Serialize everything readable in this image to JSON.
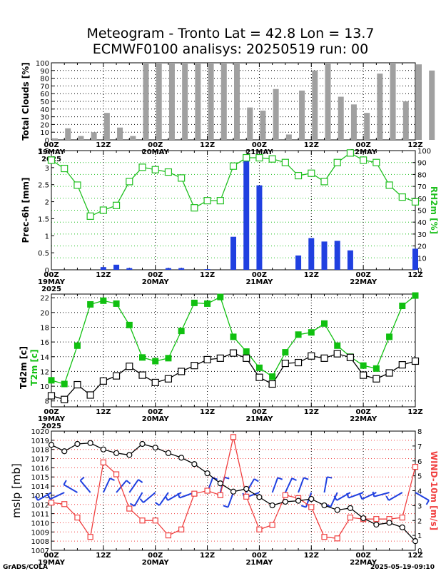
{
  "header": {
    "title_line1": "Meteogram - Tronto Lat = 42.8 Lon = 13.7",
    "title_line2": "ECMWF0100 analisys: 20250519 run: 00"
  },
  "footer": {
    "left": "GrADS/COLA",
    "right": "2025-05-19-09:10"
  },
  "time_axis": {
    "ticks": [
      "00Z",
      "12Z",
      "00Z",
      "12Z",
      "00Z",
      "12Z",
      "00Z",
      "12Z"
    ],
    "day_labels": [
      "19MAY",
      "20MAY",
      "21MAY",
      "22MAY"
    ],
    "year": "2025"
  },
  "colors": {
    "bar_gray": "#a0a0a0",
    "precip_blue": "#2040e0",
    "rh_green": "#20c020",
    "t2m_green": "#10c010",
    "td_black": "#000000",
    "wind_red": "#f04040",
    "barb_blue": "#2040e0"
  },
  "chart_data": [
    {
      "type": "bar",
      "panel": "clouds",
      "ylabel": "Total Clouds [%]",
      "ylim": [
        0,
        100
      ],
      "yticks": [
        0,
        10,
        20,
        30,
        40,
        50,
        60,
        70,
        80,
        90,
        100
      ],
      "x_step_hours": 3,
      "values": [
        2,
        15,
        5,
        10,
        35,
        16,
        5,
        100,
        100,
        100,
        100,
        100,
        100,
        100,
        100,
        42,
        38,
        66,
        7,
        64,
        90,
        100,
        56,
        46,
        35,
        86,
        100,
        50,
        98,
        90
      ]
    },
    {
      "type": "bar+line",
      "panel": "precip_rh",
      "series": [
        {
          "name": "Prec-6h [mm]",
          "axis": "left",
          "ylim": [
            0,
            3.5
          ],
          "yticks": [
            0,
            0.5,
            1,
            1.5,
            2,
            2.5,
            3,
            3.5
          ],
          "x_hours": [
            0,
            3,
            6,
            9,
            12,
            15,
            18,
            21,
            24,
            27,
            30,
            33,
            36,
            39,
            42,
            45,
            48,
            51,
            54,
            57,
            60,
            63,
            66,
            69,
            72,
            75,
            78,
            81,
            84
          ],
          "values": [
            0,
            0,
            0,
            0,
            0.08,
            0.15,
            0.05,
            0,
            0,
            0.05,
            0.05,
            0,
            0.02,
            0,
            0.97,
            3.38,
            2.48,
            0,
            0,
            0.42,
            0.93,
            0.83,
            0.85,
            0.57,
            0,
            0,
            0,
            0,
            0.62
          ]
        },
        {
          "name": "RH2m [%]",
          "axis": "right",
          "ylim": [
            0,
            100
          ],
          "yticks": [
            0,
            10,
            20,
            30,
            40,
            50,
            60,
            70,
            80,
            90,
            100
          ],
          "x_hours": [
            0,
            3,
            6,
            9,
            12,
            15,
            18,
            21,
            24,
            27,
            30,
            33,
            36,
            39,
            42,
            45,
            48,
            51,
            54,
            57,
            60,
            63,
            66,
            69,
            72,
            75,
            78,
            81,
            84
          ],
          "values": [
            92,
            85,
            71,
            45,
            50,
            54,
            74,
            86,
            84,
            82,
            77,
            52,
            58,
            58,
            87,
            94,
            94,
            93,
            90,
            79,
            81,
            74,
            90,
            98,
            92,
            90,
            71,
            61,
            57
          ]
        }
      ]
    },
    {
      "type": "line",
      "panel": "temperature",
      "ylabel_top": "Td2m [c]",
      "ylabel_bottom": "T2m [c]",
      "ylim": [
        7.2,
        22.5
      ],
      "yticks": [
        8,
        10,
        12,
        14,
        16,
        18,
        20,
        22
      ],
      "series": [
        {
          "name": "T2m",
          "x_hours": [
            0,
            3,
            6,
            9,
            12,
            15,
            18,
            21,
            24,
            27,
            30,
            33,
            36,
            39,
            42,
            45,
            48,
            51,
            54,
            57,
            60,
            63,
            66,
            69,
            72,
            75,
            78,
            81,
            84
          ],
          "values": [
            10.8,
            10.3,
            15.5,
            21.1,
            21.6,
            21.2,
            18.3,
            13.9,
            13.4,
            13.8,
            17.5,
            21.3,
            21.2,
            22.1,
            16.7,
            14.7,
            12.5,
            11.3,
            14.6,
            17.0,
            17.3,
            18.5,
            15.5,
            14.0,
            12.8,
            12.4,
            16.7,
            20.9,
            22.3
          ]
        },
        {
          "name": "Td2m",
          "x_hours": [
            0,
            3,
            6,
            9,
            12,
            15,
            18,
            21,
            24,
            27,
            30,
            33,
            36,
            39,
            42,
            45,
            48,
            51,
            54,
            57,
            60,
            63,
            66,
            69,
            72,
            75,
            78,
            81,
            84
          ],
          "values": [
            8.7,
            8.2,
            10.2,
            8.8,
            10.7,
            11.4,
            12.7,
            11.5,
            10.5,
            11.0,
            12.0,
            12.8,
            13.6,
            13.8,
            14.5,
            13.8,
            11.2,
            10.3,
            13.1,
            13.2,
            14.1,
            13.8,
            14.4,
            13.9,
            11.5,
            11.0,
            11.8,
            12.9,
            13.4
          ]
        }
      ]
    },
    {
      "type": "line+barbs",
      "panel": "mslp_wind",
      "series": [
        {
          "name": "mslp [mb]",
          "axis": "left",
          "ylim": [
            1007,
            1020
          ],
          "yticks": [
            1007,
            1008,
            1009,
            1010,
            1011,
            1012,
            1013,
            1014,
            1015,
            1016,
            1017,
            1018,
            1019,
            1020
          ],
          "x_hours": [
            0,
            3,
            6,
            9,
            12,
            15,
            18,
            21,
            24,
            27,
            30,
            33,
            36,
            39,
            42,
            45,
            48,
            51,
            54,
            57,
            60,
            63,
            66,
            69,
            72,
            75,
            78,
            81,
            84
          ],
          "values": [
            1018.5,
            1017.8,
            1018.6,
            1018.7,
            1018.0,
            1017.6,
            1017.4,
            1018.6,
            1018.2,
            1017.6,
            1017.1,
            1016.4,
            1015.4,
            1014.3,
            1013.4,
            1013.7,
            1012.8,
            1011.9,
            1012.3,
            1012.4,
            1012.6,
            1011.9,
            1011.4,
            1011.6,
            1010.5,
            1009.8,
            1010.0,
            1009.5,
            1008.0
          ]
        },
        {
          "name": "WIND-10m [m/s]",
          "axis": "right",
          "ylim": [
            0,
            8
          ],
          "yticks": [
            0,
            1,
            2,
            3,
            4,
            5,
            6,
            7,
            8
          ],
          "x_hours": [
            0,
            3,
            6,
            9,
            12,
            15,
            18,
            21,
            24,
            27,
            30,
            33,
            36,
            39,
            42,
            45,
            48,
            51,
            54,
            57,
            60,
            63,
            66,
            69,
            72,
            75,
            78,
            81,
            84
          ],
          "values": [
            3.2,
            3.1,
            2.2,
            0.9,
            5.9,
            5.1,
            2.8,
            2.0,
            2.0,
            1.0,
            1.4,
            3.8,
            4.0,
            3.7,
            7.6,
            3.6,
            1.4,
            1.7,
            3.7,
            3.5,
            2.9,
            0.9,
            0.8,
            2.2,
            2.1,
            2.1,
            2.1,
            2.2,
            5.6
          ]
        },
        {
          "name": "wind direction [deg]",
          "x_hours": [
            0,
            3,
            6,
            9,
            12,
            15,
            18,
            21,
            24,
            27,
            30,
            33,
            36,
            39,
            42,
            45,
            48,
            51,
            54,
            57,
            60,
            63,
            66,
            69,
            72,
            75,
            78,
            81,
            84
          ],
          "values": [
            240,
            245,
            300,
            320,
            25,
            40,
            35,
            210,
            230,
            215,
            240,
            250,
            20,
            15,
            200,
            30,
            250,
            20,
            25,
            20,
            200,
            10,
            205,
            240,
            250,
            245,
            255,
            240,
            120
          ]
        }
      ]
    }
  ]
}
